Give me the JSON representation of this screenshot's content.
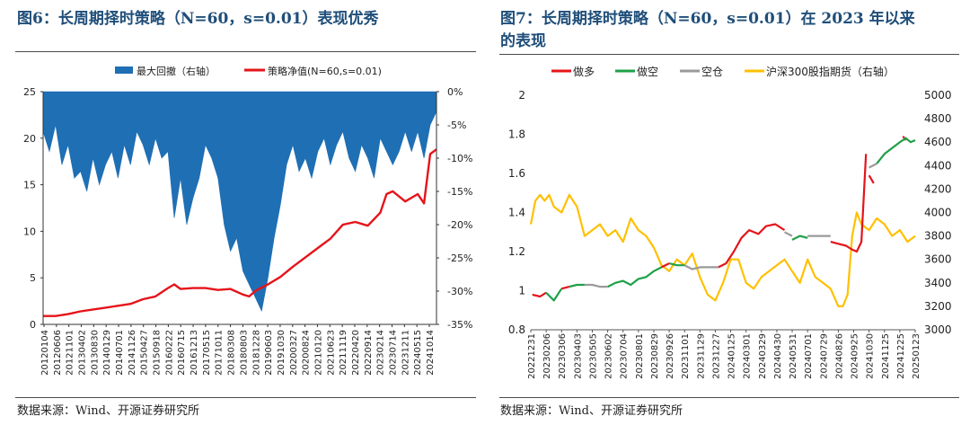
{
  "figures": {
    "left": {
      "title": "图6：长周期择时策略（N=60，s=0.01）表现优秀",
      "source": "数据来源：Wind、开源证券研究所"
    },
    "right": {
      "title_line1": "图7：长周期择时策略（N=60，s=0.01）在 2023 年以来",
      "title_line2": "的表现",
      "source": "数据来源：Wind、开源证券研究所"
    }
  },
  "colors": {
    "title": "#1f4e79",
    "blue": "#1f6fb4",
    "red": "#e5141a",
    "green": "#1fa048",
    "gray": "#9a9a9a",
    "gold": "#ffc000"
  },
  "chart_data": [
    {
      "type": "area",
      "legend": [
        "最大回撤（右轴）",
        "策略净值(N=60,s=0.01)"
      ],
      "legend_position": "top",
      "x_ticks": [
        "20120104",
        "20120606",
        "20121101",
        "20130402",
        "20130830",
        "20140129",
        "20140701",
        "20141126",
        "20150427",
        "20150918",
        "20160222",
        "20160715",
        "20161213",
        "20170515",
        "20171011",
        "20180308",
        "20180803",
        "20181228",
        "20190603",
        "20191030",
        "20200327",
        "20200824",
        "20210120",
        "20210623",
        "20211119",
        "20220420",
        "20220914",
        "20230214",
        "20230714",
        "20231211",
        "20240515",
        "20241014"
      ],
      "left_axis": {
        "ticks": [
          "0",
          "5",
          "10",
          "15",
          "20",
          "25"
        ],
        "range": [
          0,
          25
        ]
      },
      "right_axis": {
        "ticks": [
          "0%",
          "-5%",
          "-10%",
          "-15%",
          "-20%",
          "-25%",
          "-30%",
          "-35%"
        ],
        "range": [
          -35,
          0
        ]
      },
      "series": [
        {
          "name": "最大回撤（右轴）",
          "axis": "right",
          "type": "area",
          "x": [
            0,
            1,
            2,
            3,
            4,
            5,
            6,
            7,
            8,
            9,
            10,
            11,
            12,
            13,
            14,
            15,
            16,
            17,
            18,
            19,
            20,
            21,
            22,
            23,
            24,
            25,
            26,
            27,
            28,
            29,
            30,
            31,
            32,
            33,
            34,
            35,
            36,
            37,
            38,
            39,
            40,
            41,
            42,
            43,
            44,
            45,
            46,
            47,
            48,
            49,
            50,
            51,
            52,
            53,
            54,
            55,
            56,
            57,
            58,
            59,
            60,
            61,
            62,
            63
          ],
          "values": [
            -6,
            -9,
            -5,
            -11,
            -8,
            -13,
            -12,
            -15,
            -10,
            -14,
            -11,
            -9,
            -13,
            -8,
            -11,
            -6,
            -8,
            -11,
            -7,
            -10,
            -9,
            -19,
            -13,
            -20,
            -16,
            -13,
            -8,
            -10,
            -13,
            -20,
            -24,
            -22,
            -27,
            -29,
            -31,
            -33,
            -28,
            -22,
            -17,
            -11,
            -8,
            -12,
            -10,
            -13,
            -9,
            -7,
            -11,
            -8,
            -6,
            -10,
            -12,
            -8,
            -10,
            -13,
            -7,
            -9,
            -11,
            -9,
            -6,
            -9,
            -6,
            -10,
            -5,
            -3
          ]
        },
        {
          "name": "策略净值(N=60,s=0.01)",
          "axis": "left",
          "type": "line",
          "x": [
            0,
            2,
            4,
            6,
            8,
            10,
            12,
            14,
            16,
            18,
            20,
            21,
            22,
            24,
            26,
            28,
            30,
            32,
            33,
            34,
            36,
            38,
            40,
            42,
            44,
            46,
            48,
            50,
            52,
            54,
            55,
            56,
            58,
            60,
            61,
            62,
            63
          ],
          "values": [
            0.9,
            0.9,
            1.1,
            1.4,
            1.6,
            1.8,
            2.0,
            2.2,
            2.7,
            3.0,
            3.9,
            4.3,
            3.8,
            3.9,
            3.9,
            3.7,
            3.8,
            3.2,
            3.0,
            3.6,
            4.3,
            5.1,
            6.2,
            7.2,
            8.2,
            9.2,
            10.7,
            11.0,
            10.6,
            12.0,
            14.0,
            14.3,
            13.2,
            14.0,
            13.0,
            18.3,
            18.8
          ]
        }
      ]
    },
    {
      "type": "line",
      "legend": [
        "做多",
        "做空",
        "空仓",
        "沪深300股指期货（右轴）"
      ],
      "legend_position": "top",
      "x_ticks": [
        "20221231",
        "20230206",
        "20230306",
        "20230403",
        "20230505",
        "20230602",
        "20230704",
        "20230801",
        "20230829",
        "20230926",
        "20231101",
        "20231129",
        "20231227",
        "20240125",
        "20240301",
        "20240329",
        "20240430",
        "20240531",
        "20240701",
        "20240729",
        "20240826",
        "20240925",
        "20241030",
        "20241125",
        "20241225",
        "20250123"
      ],
      "left_axis": {
        "ticks": [
          "0.8",
          "1",
          "1.2",
          "1.4",
          "1.6",
          "1.8",
          "2"
        ],
        "range": [
          0.8,
          2.0
        ]
      },
      "right_axis": {
        "ticks": [
          "3000",
          "3200",
          "3400",
          "3600",
          "3800",
          "4000",
          "4200",
          "4400",
          "4600",
          "4800",
          "5000"
        ],
        "range": [
          3000,
          5000
        ]
      },
      "series": [
        {
          "name": "沪深300股指期货（右轴）",
          "axis": "right",
          "x": [
            0,
            0.3,
            0.6,
            0.9,
            1.2,
            1.5,
            2.0,
            2.5,
            3.0,
            3.5,
            4.0,
            4.5,
            5.0,
            5.5,
            6.0,
            6.5,
            7.0,
            7.5,
            8.0,
            8.5,
            9.0,
            9.5,
            10.0,
            10.5,
            11.0,
            11.5,
            12.0,
            12.5,
            13.0,
            13.5,
            14.0,
            14.5,
            15.0,
            15.5,
            16.0,
            16.5,
            17.0,
            17.5,
            18.0,
            18.5,
            19.0,
            19.5,
            20.0,
            20.3,
            20.6,
            20.9,
            21.2,
            21.5,
            22.0,
            22.5,
            23.0,
            23.5,
            24.0,
            24.5,
            25.0
          ],
          "values": [
            3900,
            4100,
            4150,
            4100,
            4150,
            4050,
            4000,
            4150,
            4050,
            3800,
            3850,
            3900,
            3800,
            3850,
            3750,
            3950,
            3850,
            3800,
            3700,
            3550,
            3500,
            3600,
            3550,
            3650,
            3450,
            3300,
            3250,
            3400,
            3600,
            3600,
            3400,
            3350,
            3450,
            3500,
            3550,
            3600,
            3500,
            3400,
            3600,
            3450,
            3400,
            3350,
            3200,
            3200,
            3300,
            3800,
            4000,
            3900,
            3850,
            3950,
            3900,
            3800,
            3850,
            3750,
            3800
          ]
        },
        {
          "name": "做多",
          "axis": "left",
          "segments": [
            {
              "x": [
                0.1,
                0.6,
                1.0
              ],
              "values": [
                0.98,
                0.97,
                0.99
              ]
            },
            {
              "x": [
                2.0,
                2.5
              ],
              "values": [
                1.01,
                1.02
              ]
            },
            {
              "x": [
                8.5,
                9.0
              ],
              "values": [
                1.12,
                1.14
              ]
            },
            {
              "x": [
                12.2,
                12.7,
                13.2,
                13.7,
                14.2,
                14.8,
                15.3,
                15.9,
                16.5
              ],
              "values": [
                1.12,
                1.14,
                1.2,
                1.27,
                1.31,
                1.29,
                1.33,
                1.34,
                1.31
              ]
            },
            {
              "x": [
                19.5,
                20.0,
                20.5,
                20.9,
                21.2,
                21.5,
                21.8
              ],
              "values": [
                1.25,
                1.24,
                1.23,
                1.21,
                1.2,
                1.25,
                1.7
              ]
            },
            {
              "x": [
                22.0,
                22.3
              ],
              "values": [
                1.59,
                1.55
              ]
            },
            {
              "x": [
                24.2,
                24.4
              ],
              "values": [
                1.79,
                1.77
              ]
            }
          ]
        },
        {
          "name": "做空",
          "axis": "left",
          "segments": [
            {
              "x": [
                1.0,
                1.5,
                2.0
              ],
              "values": [
                0.99,
                0.95,
                1.01
              ]
            },
            {
              "x": [
                2.5,
                3.0,
                3.5
              ],
              "values": [
                1.02,
                1.03,
                1.03
              ]
            },
            {
              "x": [
                5.0,
                5.5,
                6.0,
                6.5,
                7.0,
                7.5,
                8.0,
                8.5
              ],
              "values": [
                1.02,
                1.04,
                1.05,
                1.03,
                1.06,
                1.07,
                1.1,
                1.12
              ]
            },
            {
              "x": [
                9.0,
                9.5,
                10.0
              ],
              "values": [
                1.14,
                1.13,
                1.13
              ]
            },
            {
              "x": [
                17.0,
                17.5,
                18.0
              ],
              "values": [
                1.26,
                1.28,
                1.27
              ]
            },
            {
              "x": [
                22.5,
                23.0,
                23.5,
                24.0,
                24.4,
                24.7,
                25.0
              ],
              "values": [
                1.65,
                1.7,
                1.73,
                1.76,
                1.78,
                1.76,
                1.77
              ]
            }
          ]
        },
        {
          "name": "空仓",
          "axis": "left",
          "segments": [
            {
              "x": [
                3.5,
                4.0,
                4.5,
                5.0
              ],
              "values": [
                1.03,
                1.03,
                1.02,
                1.02
              ]
            },
            {
              "x": [
                10.0,
                10.5,
                11.0,
                11.5,
                12.2
              ],
              "values": [
                1.13,
                1.11,
                1.12,
                1.12,
                1.12
              ]
            },
            {
              "x": [
                16.5,
                17.0
              ],
              "values": [
                1.3,
                1.28
              ]
            },
            {
              "x": [
                18.0,
                18.5,
                19.0,
                19.5
              ],
              "values": [
                1.28,
                1.28,
                1.28,
                1.28
              ]
            },
            {
              "x": [
                22.0,
                22.5
              ],
              "values": [
                1.63,
                1.65
              ]
            }
          ]
        }
      ]
    }
  ]
}
